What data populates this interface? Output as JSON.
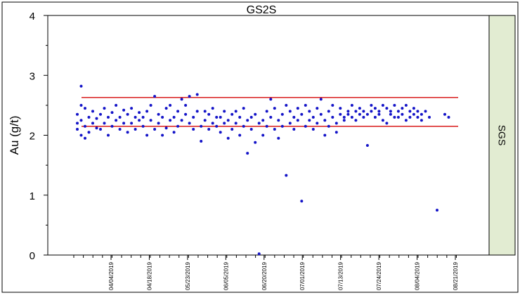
{
  "chart_data": {
    "type": "scatter",
    "title": "GS2S",
    "ylabel": "Au (g/t)",
    "xlabel": "",
    "side_label": "SGS",
    "ylim": [
      0,
      4
    ],
    "yticks": [
      "0",
      "1",
      "2",
      "3",
      "4"
    ],
    "xtick_labels": [
      "04/04/2019",
      "04/18/2019",
      "05/23/2019",
      "06/05/2019",
      "06/20/2019",
      "07/01/2019",
      "07/13/2019",
      "07/24/2019",
      "08/04/2019",
      "08/21/2019"
    ],
    "reference_lines": [
      {
        "y": 2.63,
        "color": "#d81b1b"
      },
      {
        "y": 2.15,
        "color": "#d81b1b"
      }
    ],
    "x_index_range": [
      1,
      100
    ],
    "series": [
      {
        "color": "#1414c8",
        "points": [
          [
            1,
            2.1
          ],
          [
            1,
            2.2
          ],
          [
            1,
            2.35
          ],
          [
            2,
            2.0
          ],
          [
            2,
            2.25
          ],
          [
            2,
            2.5
          ],
          [
            2,
            2.82
          ],
          [
            3,
            1.95
          ],
          [
            3,
            2.15
          ],
          [
            3,
            2.45
          ],
          [
            4,
            2.05
          ],
          [
            4,
            2.3
          ],
          [
            5,
            2.2
          ],
          [
            5,
            2.4
          ],
          [
            6,
            2.12
          ],
          [
            6,
            2.28
          ],
          [
            7,
            2.1
          ],
          [
            7,
            2.35
          ],
          [
            8,
            2.2
          ],
          [
            8,
            2.45
          ],
          [
            9,
            2.0
          ],
          [
            9,
            2.3
          ],
          [
            10,
            2.15
          ],
          [
            10,
            2.38
          ],
          [
            11,
            2.25
          ],
          [
            11,
            2.5
          ],
          [
            12,
            2.1
          ],
          [
            12,
            2.3
          ],
          [
            13,
            2.2
          ],
          [
            13,
            2.42
          ],
          [
            14,
            2.05
          ],
          [
            14,
            2.35
          ],
          [
            15,
            2.2
          ],
          [
            15,
            2.45
          ],
          [
            16,
            2.1
          ],
          [
            16,
            2.3
          ],
          [
            17,
            2.25
          ],
          [
            17,
            2.38
          ],
          [
            18,
            2.15
          ],
          [
            18,
            2.3
          ],
          [
            19,
            2.0
          ],
          [
            19,
            2.4
          ],
          [
            20,
            2.25
          ],
          [
            20,
            2.5
          ],
          [
            21,
            2.1
          ],
          [
            21,
            2.65
          ],
          [
            22,
            2.35
          ],
          [
            22,
            2.2
          ],
          [
            23,
            2.0
          ],
          [
            23,
            2.3
          ],
          [
            24,
            2.12
          ],
          [
            24,
            2.45
          ],
          [
            25,
            2.25
          ],
          [
            25,
            2.5
          ],
          [
            26,
            2.05
          ],
          [
            26,
            2.3
          ],
          [
            27,
            2.15
          ],
          [
            27,
            2.4
          ],
          [
            28,
            2.25
          ],
          [
            28,
            2.6
          ],
          [
            29,
            2.35
          ],
          [
            29,
            2.5
          ],
          [
            30,
            2.2
          ],
          [
            30,
            2.65
          ],
          [
            31,
            2.1
          ],
          [
            31,
            2.3
          ],
          [
            32,
            2.68
          ],
          [
            32,
            2.4
          ],
          [
            33,
            1.9
          ],
          [
            33,
            2.15
          ],
          [
            34,
            2.25
          ],
          [
            34,
            2.4
          ],
          [
            35,
            2.1
          ],
          [
            35,
            2.35
          ],
          [
            36,
            2.2
          ],
          [
            36,
            2.45
          ],
          [
            37,
            2.3
          ],
          [
            37,
            2.15
          ],
          [
            38,
            2.05
          ],
          [
            38,
            2.3
          ],
          [
            39,
            2.2
          ],
          [
            39,
            2.4
          ],
          [
            40,
            1.95
          ],
          [
            40,
            2.25
          ],
          [
            41,
            2.1
          ],
          [
            41,
            2.35
          ],
          [
            42,
            2.2
          ],
          [
            42,
            2.4
          ],
          [
            43,
            2.0
          ],
          [
            43,
            2.3
          ],
          [
            44,
            2.15
          ],
          [
            44,
            2.45
          ],
          [
            45,
            2.25
          ],
          [
            45,
            1.7
          ],
          [
            46,
            2.3
          ],
          [
            46,
            2.1
          ],
          [
            47,
            1.88
          ],
          [
            47,
            2.35
          ],
          [
            48,
            2.2
          ],
          [
            48,
            0.02
          ],
          [
            49,
            2.0
          ],
          [
            49,
            2.25
          ],
          [
            50,
            2.4
          ],
          [
            50,
            2.15
          ],
          [
            51,
            2.3
          ],
          [
            51,
            2.6
          ],
          [
            52,
            2.1
          ],
          [
            52,
            2.45
          ],
          [
            53,
            1.95
          ],
          [
            53,
            2.25
          ],
          [
            54,
            2.35
          ],
          [
            54,
            2.15
          ],
          [
            55,
            1.33
          ],
          [
            55,
            2.5
          ],
          [
            56,
            2.2
          ],
          [
            56,
            2.4
          ],
          [
            57,
            2.1
          ],
          [
            57,
            2.3
          ],
          [
            58,
            2.25
          ],
          [
            58,
            2.45
          ],
          [
            59,
            0.9
          ],
          [
            59,
            2.35
          ],
          [
            60,
            2.15
          ],
          [
            60,
            2.5
          ],
          [
            61,
            2.25
          ],
          [
            61,
            2.4
          ],
          [
            62,
            2.1
          ],
          [
            62,
            2.3
          ],
          [
            63,
            2.2
          ],
          [
            63,
            2.45
          ],
          [
            64,
            2.6
          ],
          [
            64,
            2.35
          ],
          [
            65,
            2.0
          ],
          [
            65,
            2.25
          ],
          [
            66,
            2.15
          ],
          [
            66,
            2.4
          ],
          [
            67,
            2.3
          ],
          [
            67,
            2.5
          ],
          [
            68,
            2.2
          ],
          [
            68,
            2.05
          ],
          [
            69,
            2.35
          ],
          [
            69,
            2.45
          ],
          [
            70,
            2.25
          ],
          [
            70,
            2.3
          ],
          [
            71,
            2.4
          ],
          [
            71,
            2.35
          ],
          [
            72,
            2.3
          ],
          [
            72,
            2.5
          ],
          [
            73,
            2.25
          ],
          [
            73,
            2.4
          ],
          [
            74,
            2.35
          ],
          [
            74,
            2.45
          ],
          [
            75,
            2.3
          ],
          [
            75,
            2.4
          ],
          [
            76,
            1.83
          ],
          [
            76,
            2.35
          ],
          [
            77,
            2.4
          ],
          [
            77,
            2.5
          ],
          [
            78,
            2.3
          ],
          [
            78,
            2.45
          ],
          [
            79,
            2.35
          ],
          [
            79,
            2.4
          ],
          [
            80,
            2.25
          ],
          [
            80,
            2.5
          ],
          [
            81,
            2.2
          ],
          [
            81,
            2.45
          ],
          [
            82,
            2.35
          ],
          [
            82,
            2.4
          ],
          [
            83,
            2.3
          ],
          [
            83,
            2.5
          ],
          [
            84,
            2.4
          ],
          [
            84,
            2.3
          ],
          [
            85,
            2.35
          ],
          [
            85,
            2.45
          ],
          [
            86,
            2.25
          ],
          [
            86,
            2.5
          ],
          [
            87,
            2.4
          ],
          [
            87,
            2.3
          ],
          [
            88,
            2.35
          ],
          [
            88,
            2.45
          ],
          [
            89,
            2.3
          ],
          [
            89,
            2.4
          ],
          [
            90,
            2.35
          ],
          [
            90,
            2.25
          ],
          [
            91,
            2.4
          ],
          [
            92,
            2.3
          ],
          [
            94,
            0.75
          ],
          [
            96,
            2.35
          ],
          [
            97,
            2.3
          ]
        ]
      }
    ]
  }
}
